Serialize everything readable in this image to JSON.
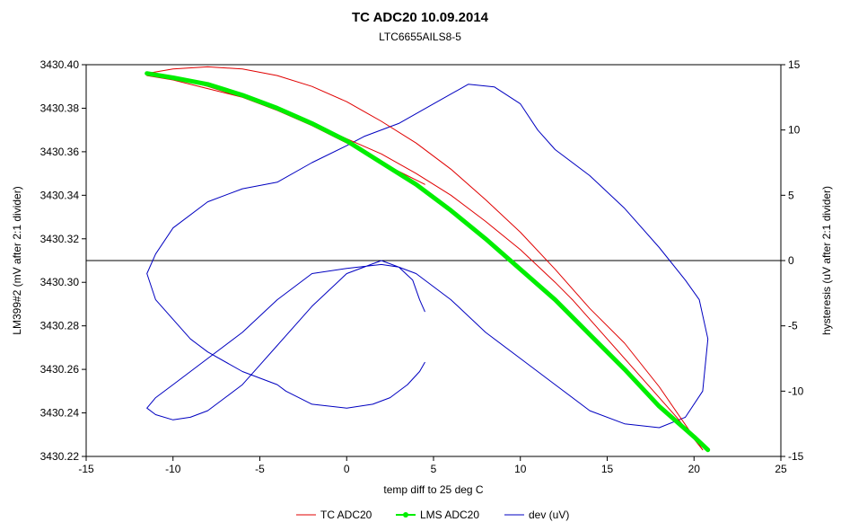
{
  "chart_data": {
    "type": "line",
    "title": "TC ADC20 10.09.2014",
    "subtitle": "LTC6655AILS8-5",
    "xlabel": "temp diff to 25 deg C",
    "ylabel": "LM399#2 (mV after 2:1 divider)",
    "y2label": "hysteresis (uV after 2:1 divider)",
    "xlim": [
      -15,
      25
    ],
    "ylim": [
      3430.22,
      3430.4
    ],
    "y2lim": [
      -15,
      15
    ],
    "xticks": [
      "-15",
      "-10",
      "-5",
      "0",
      "5",
      "10",
      "15",
      "20",
      "25"
    ],
    "yticks": [
      "3430.22",
      "3430.24",
      "3430.26",
      "3430.28",
      "3430.30",
      "3430.32",
      "3430.34",
      "3430.36",
      "3430.38",
      "3430.40"
    ],
    "y2ticks": [
      "-15",
      "-10",
      "-5",
      "0",
      "5",
      "10",
      "15"
    ],
    "y2_reference_line": 0,
    "grid": false,
    "legend_position": "bottom",
    "colors": {
      "tc": "#e00000",
      "lms": "#00ee00",
      "dev": "#0000c0"
    },
    "series": [
      {
        "name": "TC ADC20",
        "axis": "left",
        "color": "#e00000",
        "x": [
          4.5,
          2.0,
          0.0,
          -2.0,
          -4.0,
          -6.0,
          -8.0,
          -10.0,
          -11.5,
          -10.0,
          -8.0,
          -6.0,
          -4.0,
          -2.0,
          0.0,
          2.0,
          4.0,
          6.0,
          8.0,
          10.0,
          12.0,
          14.0,
          16.0,
          18.0,
          20.5,
          19.0,
          17.0,
          15.0,
          13.0,
          12.0,
          10.0,
          8.0,
          6.0,
          4.0,
          2.0,
          0.0,
          -2.0,
          -4.0,
          -6.0,
          -8.0,
          -10.0,
          -11.5
        ],
        "y": [
          3430.345,
          3430.355,
          3430.364,
          3430.372,
          3430.379,
          3430.385,
          3430.39,
          3430.394,
          3430.396,
          3430.398,
          3430.399,
          3430.398,
          3430.395,
          3430.39,
          3430.383,
          3430.374,
          3430.364,
          3430.352,
          3430.338,
          3430.323,
          3430.306,
          3430.288,
          3430.272,
          3430.252,
          3430.223,
          3430.238,
          3430.256,
          3430.274,
          3430.292,
          3430.3,
          3430.315,
          3430.328,
          3430.34,
          3430.35,
          3430.359,
          3430.366,
          3430.373,
          3430.38,
          3430.385,
          3430.389,
          3430.393,
          3430.395
        ]
      },
      {
        "name": "LMS ADC20",
        "axis": "left",
        "color": "#00ee00",
        "x": [
          -11.5,
          -10.0,
          -8.0,
          -6.0,
          -4.0,
          -2.0,
          0.0,
          2.0,
          4.0,
          6.0,
          8.0,
          10.0,
          12.0,
          14.0,
          16.0,
          18.0,
          20.0,
          20.8
        ],
        "y": [
          3430.396,
          3430.394,
          3430.391,
          3430.386,
          3430.38,
          3430.373,
          3430.365,
          3430.355,
          3430.345,
          3430.333,
          3430.32,
          3430.306,
          3430.292,
          3430.276,
          3430.26,
          3430.243,
          3430.229,
          3430.223
        ]
      },
      {
        "name": "dev (uV)",
        "axis": "right",
        "color": "#0000c0",
        "x": [
          4.5,
          4.2,
          3.8,
          3.0,
          2.0,
          0.0,
          -2.0,
          -4.0,
          -6.0,
          -8.0,
          -10.0,
          -11.0,
          -11.5,
          -11.0,
          -10.0,
          -9.0,
          -8.0,
          -7.0,
          -6.0,
          -5.0,
          -4.0,
          -2.0,
          0.0,
          2.0,
          4.0,
          6.0,
          8.0,
          10.0,
          12.0,
          14.0,
          16.0,
          18.0,
          19.5,
          20.5,
          20.8,
          20.3,
          19.5,
          18.0,
          16.0,
          14.0,
          12.0,
          11.0,
          10.0,
          8.5,
          7.0,
          5.0,
          3.0,
          1.0,
          0.0,
          -2.0,
          -4.0,
          -6.0,
          -8.0,
          -10.0,
          -11.0,
          -11.5,
          -11.0,
          -10.0,
          -9.0,
          -8.0,
          -6.0,
          -4.0,
          -3.5,
          -2.0,
          0.0,
          1.5,
          2.5,
          3.5,
          4.2,
          4.5
        ],
        "y": [
          -3.9,
          -3.0,
          -1.5,
          -0.5,
          -0.3,
          -0.6,
          -1.0,
          -3.0,
          -5.5,
          -7.5,
          -9.5,
          -10.5,
          -11.3,
          -11.8,
          -12.2,
          -12.0,
          -11.5,
          -10.5,
          -9.5,
          -8.0,
          -6.5,
          -3.5,
          -1.0,
          0.0,
          -1.0,
          -3.0,
          -5.5,
          -7.5,
          -9.5,
          -11.5,
          -12.5,
          -12.8,
          -12.0,
          -10.0,
          -6.0,
          -3.0,
          -1.5,
          1.0,
          4.0,
          6.5,
          8.5,
          10.0,
          12.0,
          13.3,
          13.5,
          12.0,
          10.5,
          9.5,
          8.8,
          7.5,
          6.0,
          5.5,
          4.5,
          2.5,
          0.5,
          -1.0,
          -3.0,
          -4.5,
          -6.0,
          -7.0,
          -8.5,
          -9.5,
          -10.0,
          -11.0,
          -11.3,
          -11.0,
          -10.5,
          -9.5,
          -8.5,
          -7.8
        ]
      }
    ]
  }
}
